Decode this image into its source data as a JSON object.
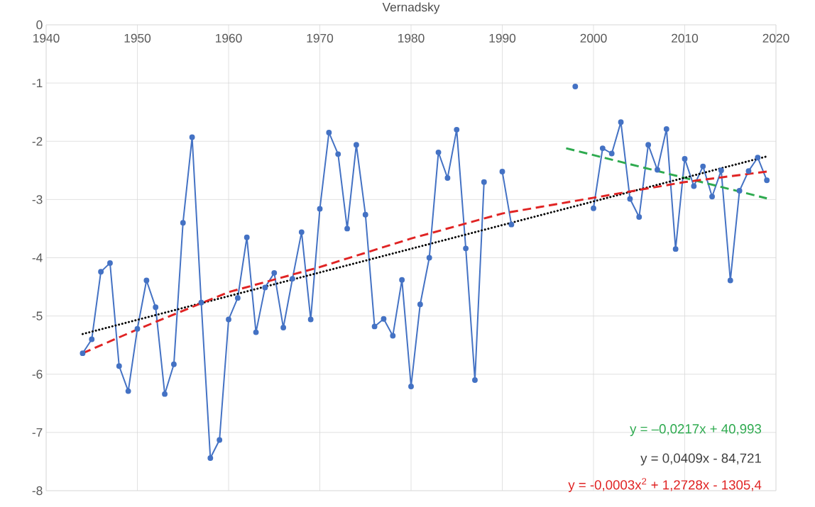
{
  "chart_data": {
    "type": "line",
    "title": "Vernadsky",
    "x": [
      1944,
      1945,
      1946,
      1947,
      1948,
      1949,
      1950,
      1951,
      1952,
      1953,
      1954,
      1955,
      1956,
      1957,
      1958,
      1959,
      1960,
      1961,
      1962,
      1963,
      1964,
      1965,
      1966,
      1967,
      1968,
      1969,
      1970,
      1971,
      1972,
      1973,
      1974,
      1975,
      1976,
      1977,
      1978,
      1979,
      1980,
      1981,
      1982,
      1983,
      1984,
      1985,
      1986,
      1987,
      1988,
      1989,
      1990,
      1991,
      1992,
      1993,
      1994,
      1995,
      1996,
      1997,
      1998,
      1999,
      2000,
      2001,
      2002,
      2003,
      2004,
      2005,
      2006,
      2007,
      2008,
      2009,
      2010,
      2011,
      2012,
      2013,
      2014,
      2015,
      2016,
      2017,
      2018,
      2019
    ],
    "series": [
      {
        "color": "#4472c4",
        "marker": "circle",
        "line_style": "solid",
        "values": [
          -5.64,
          -5.4,
          -4.24,
          -4.09,
          -5.86,
          -6.29,
          -5.22,
          -4.39,
          -4.85,
          -6.34,
          -5.83,
          -3.4,
          -1.93,
          -4.77,
          -7.44,
          -7.13,
          -5.06,
          -4.69,
          -3.65,
          -5.28,
          -4.51,
          -4.26,
          -5.2,
          -4.36,
          -3.56,
          -5.06,
          -3.16,
          -1.85,
          -2.22,
          -3.5,
          -2.06,
          -3.26,
          -5.18,
          -5.05,
          -5.34,
          -4.38,
          -6.21,
          -4.8,
          -4.0,
          -2.19,
          -2.63,
          -1.8,
          -3.84,
          -6.1,
          -2.7,
          null,
          -2.52,
          -3.43,
          null,
          null,
          null,
          null,
          null,
          null,
          -1.06,
          null,
          -3.15,
          -2.12,
          -2.21,
          -1.67,
          -2.99,
          -3.3,
          -2.06,
          -2.49,
          -1.79,
          -3.85,
          -2.3,
          -2.77,
          -2.43,
          -2.95,
          -2.5,
          -4.39,
          -2.85,
          -2.51,
          -2.28,
          -2.67
        ]
      },
      {
        "type": "line",
        "color": "#2eaa4f",
        "marker": "none",
        "line_style": "dashed",
        "x": [
          1997,
          2019
        ],
        "values": [
          -2.12,
          -2.98
        ]
      },
      {
        "type": "line",
        "color": "#000000",
        "marker": "none",
        "line_style": "dotted",
        "x": [
          1944,
          2019
        ],
        "values": [
          -5.31,
          -2.26
        ]
      },
      {
        "type": "line",
        "color": "#e02424",
        "marker": "none",
        "line_style": "dashed",
        "x": [
          1944,
          1950,
          1960,
          1970,
          1980,
          1990,
          2000,
          2010,
          2019
        ],
        "values": [
          -5.64,
          -5.23,
          -4.59,
          -4.16,
          -3.67,
          -3.24,
          -2.97,
          -2.7,
          -2.52
        ]
      }
    ],
    "xlim": [
      1940,
      2020
    ],
    "xticks": [
      1940,
      1950,
      1960,
      1970,
      1980,
      1990,
      2000,
      2010,
      2020
    ],
    "ylim": [
      -8,
      0
    ],
    "yticks": [
      -8,
      -7,
      -6,
      -5,
      -4,
      -3,
      -2,
      -1,
      0
    ],
    "grid": true,
    "annotations": [
      "y = –0,0217x + 40,993",
      "y = 0,0409x - 84,721",
      "y = -0,0003x$^{2}$ + 1,2728x - 1305,4"
    ]
  }
}
